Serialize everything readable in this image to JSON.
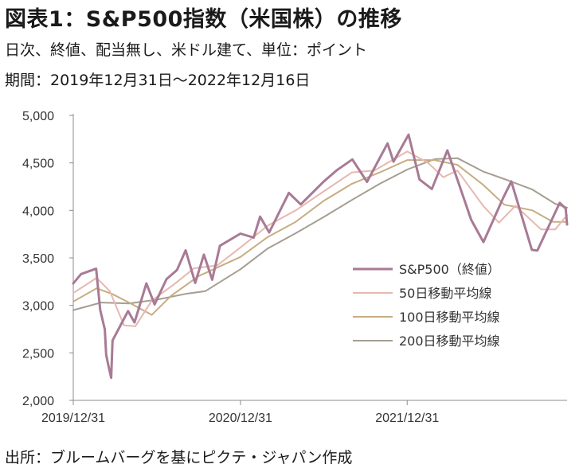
{
  "title": "図表1：S&P500指数（米国株）の推移",
  "subtitle_line1": "日次、終値、配当無し、米ドル建て、単位：ポイント",
  "subtitle_line2": "期間：2019年12月31日～2022年12月16日",
  "source": "出所：ブルームバーグを基にピクテ・ジャパン作成",
  "chart_data": {
    "type": "line",
    "ylim": [
      2000,
      5000
    ],
    "y_ticks": [
      "5,000",
      "4,500",
      "4,000",
      "3,500",
      "3,000",
      "2,500",
      "2,000"
    ],
    "y_tick_values": [
      5000,
      4500,
      4000,
      3500,
      3000,
      2500,
      2000
    ],
    "x_ticks": [
      "2019/12/31",
      "2020/12/31",
      "2021/12/31"
    ],
    "x_tick_values": [
      "2019-12-31",
      "2020-12-31",
      "2021-12-31"
    ],
    "xlim": [
      "2019-12-31",
      "2022-12-16"
    ],
    "grid": false,
    "legend_position": "bottom-right",
    "series": [
      {
        "name": "S&P500（終値）",
        "color": "#a87a95",
        "points": [
          [
            "2019-12-31",
            3231
          ],
          [
            "2020-01-17",
            3330
          ],
          [
            "2020-02-19",
            3386
          ],
          [
            "2020-02-28",
            2954
          ],
          [
            "2020-03-09",
            2747
          ],
          [
            "2020-03-12",
            2481
          ],
          [
            "2020-03-16",
            2386
          ],
          [
            "2020-03-23",
            2237
          ],
          [
            "2020-03-26",
            2630
          ],
          [
            "2020-04-08",
            2750
          ],
          [
            "2020-04-29",
            2940
          ],
          [
            "2020-05-13",
            2820
          ],
          [
            "2020-06-08",
            3232
          ],
          [
            "2020-06-26",
            3010
          ],
          [
            "2020-07-22",
            3276
          ],
          [
            "2020-08-14",
            3372
          ],
          [
            "2020-09-02",
            3580
          ],
          [
            "2020-09-23",
            3237
          ],
          [
            "2020-10-12",
            3534
          ],
          [
            "2020-10-30",
            3270
          ],
          [
            "2020-11-16",
            3627
          ],
          [
            "2020-12-31",
            3756
          ],
          [
            "2021-01-29",
            3714
          ],
          [
            "2021-02-12",
            3934
          ],
          [
            "2021-03-04",
            3768
          ],
          [
            "2021-04-16",
            4185
          ],
          [
            "2021-05-12",
            4063
          ],
          [
            "2021-06-30",
            4298
          ],
          [
            "2021-07-29",
            4420
          ],
          [
            "2021-09-02",
            4537
          ],
          [
            "2021-10-04",
            4300
          ],
          [
            "2021-11-18",
            4705
          ],
          [
            "2021-12-01",
            4513
          ],
          [
            "2022-01-03",
            4797
          ],
          [
            "2022-01-27",
            4326
          ],
          [
            "2022-02-23",
            4225
          ],
          [
            "2022-03-29",
            4632
          ],
          [
            "2022-05-20",
            3901
          ],
          [
            "2022-06-16",
            3667
          ],
          [
            "2022-07-29",
            4130
          ],
          [
            "2022-08-16",
            4305
          ],
          [
            "2022-09-30",
            3585
          ],
          [
            "2022-10-12",
            3577
          ],
          [
            "2022-11-30",
            4080
          ],
          [
            "2022-12-13",
            4019
          ],
          [
            "2022-12-16",
            3852
          ]
        ]
      },
      {
        "name": "50日移動平均線",
        "color": "#e6b8b0",
        "points": [
          [
            "2019-12-31",
            3130
          ],
          [
            "2020-02-20",
            3290
          ],
          [
            "2020-03-20",
            3150
          ],
          [
            "2020-04-20",
            2790
          ],
          [
            "2020-05-15",
            2780
          ],
          [
            "2020-06-20",
            3050
          ],
          [
            "2020-08-10",
            3230
          ],
          [
            "2020-09-20",
            3390
          ],
          [
            "2020-11-10",
            3420
          ],
          [
            "2020-12-31",
            3610
          ],
          [
            "2021-03-01",
            3840
          ],
          [
            "2021-05-01",
            4000
          ],
          [
            "2021-07-01",
            4200
          ],
          [
            "2021-09-01",
            4400
          ],
          [
            "2021-10-20",
            4420
          ],
          [
            "2021-12-31",
            4620
          ],
          [
            "2022-02-15",
            4500
          ],
          [
            "2022-03-20",
            4350
          ],
          [
            "2022-04-20",
            4420
          ],
          [
            "2022-06-15",
            4050
          ],
          [
            "2022-07-20",
            3870
          ],
          [
            "2022-08-25",
            4050
          ],
          [
            "2022-10-20",
            3800
          ],
          [
            "2022-11-20",
            3800
          ],
          [
            "2022-12-16",
            3950
          ]
        ]
      },
      {
        "name": "100日移動平均線",
        "color": "#c7ad82",
        "points": [
          [
            "2019-12-31",
            3040
          ],
          [
            "2020-02-20",
            3180
          ],
          [
            "2020-03-25",
            3120
          ],
          [
            "2020-05-01",
            3030
          ],
          [
            "2020-06-20",
            2900
          ],
          [
            "2020-08-01",
            3100
          ],
          [
            "2020-10-01",
            3310
          ],
          [
            "2020-12-31",
            3510
          ],
          [
            "2021-03-01",
            3720
          ],
          [
            "2021-05-01",
            3880
          ],
          [
            "2021-07-01",
            4100
          ],
          [
            "2021-09-01",
            4280
          ],
          [
            "2021-11-01",
            4400
          ],
          [
            "2021-12-31",
            4530
          ],
          [
            "2022-03-01",
            4530
          ],
          [
            "2022-04-20",
            4480
          ],
          [
            "2022-06-15",
            4270
          ],
          [
            "2022-08-01",
            4060
          ],
          [
            "2022-10-01",
            4000
          ],
          [
            "2022-11-15",
            3880
          ],
          [
            "2022-12-16",
            3880
          ]
        ]
      },
      {
        "name": "200日移動平均線",
        "color": "#a59e92",
        "points": [
          [
            "2019-12-31",
            2950
          ],
          [
            "2020-03-01",
            3030
          ],
          [
            "2020-05-01",
            3020
          ],
          [
            "2020-07-01",
            3060
          ],
          [
            "2020-09-01",
            3120
          ],
          [
            "2020-10-15",
            3150
          ],
          [
            "2020-12-31",
            3380
          ],
          [
            "2021-03-01",
            3600
          ],
          [
            "2021-05-01",
            3760
          ],
          [
            "2021-07-01",
            3930
          ],
          [
            "2021-09-01",
            4110
          ],
          [
            "2021-11-01",
            4280
          ],
          [
            "2021-12-31",
            4430
          ],
          [
            "2022-03-01",
            4540
          ],
          [
            "2022-04-20",
            4550
          ],
          [
            "2022-06-15",
            4410
          ],
          [
            "2022-08-01",
            4330
          ],
          [
            "2022-10-01",
            4220
          ],
          [
            "2022-11-20",
            4070
          ],
          [
            "2022-12-16",
            4030
          ]
        ]
      }
    ]
  }
}
